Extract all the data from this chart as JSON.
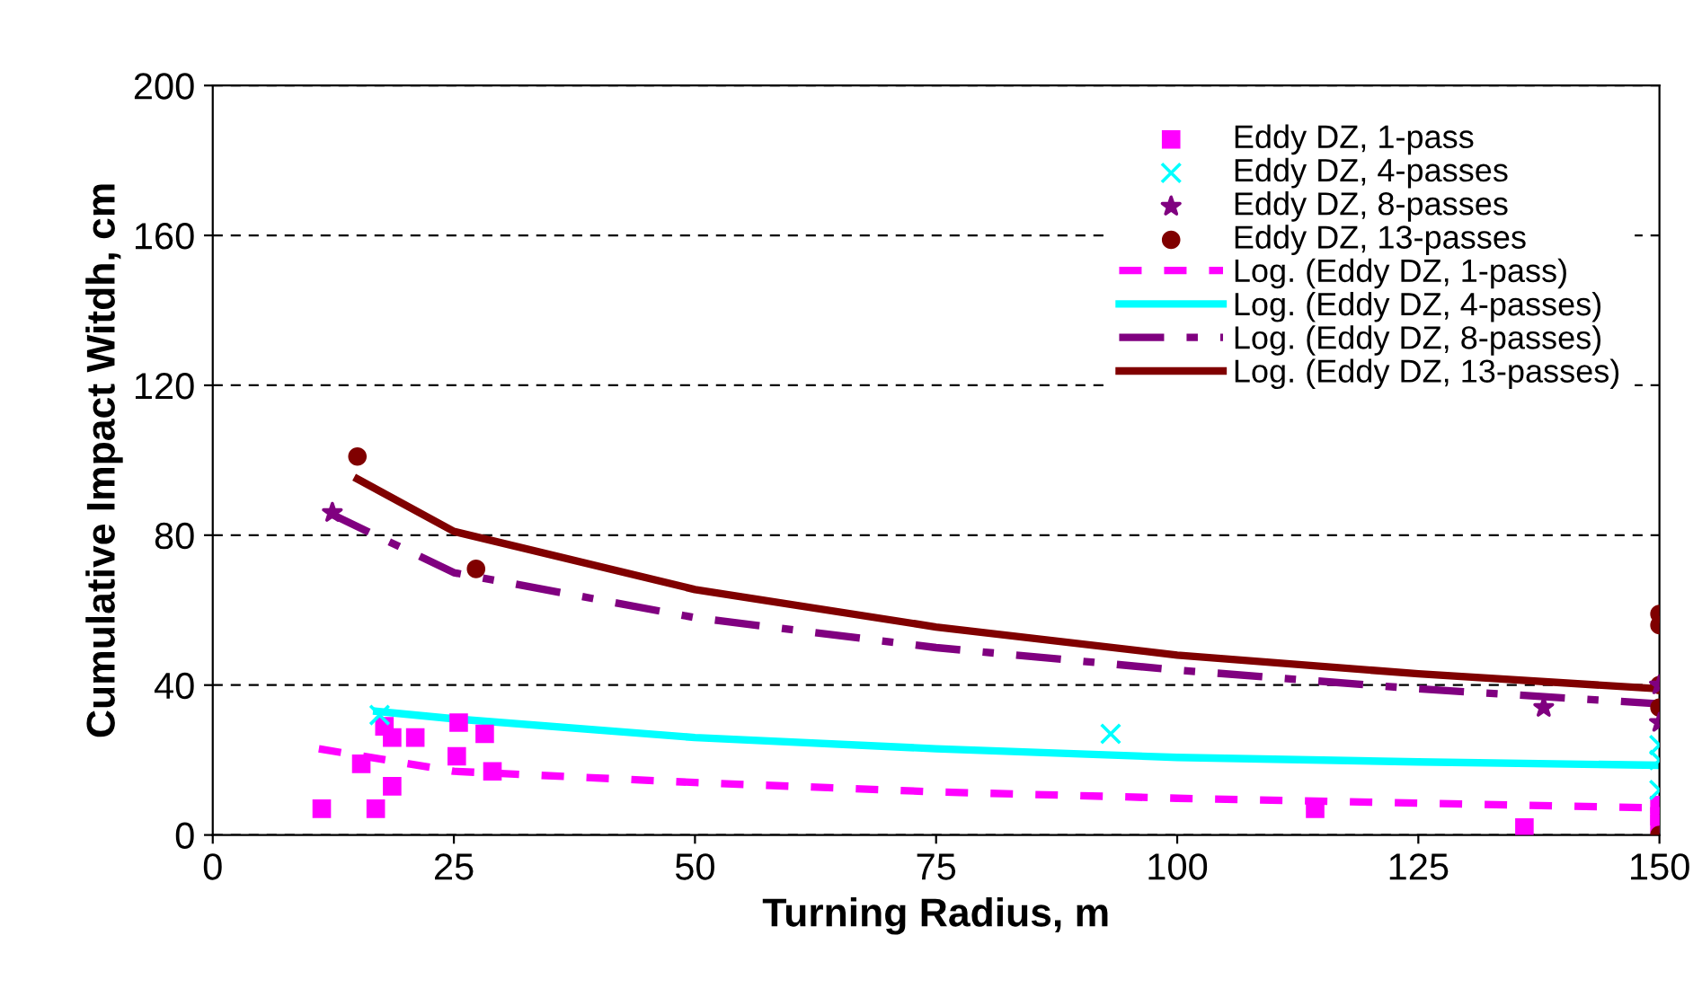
{
  "chart_data": {
    "type": "scatter",
    "xlabel": "Turning Radius, m",
    "ylabel": "Cumulative Impact Witdh, cm",
    "xlim": [
      0,
      150
    ],
    "xticks": [
      0,
      25,
      50,
      75,
      100,
      125,
      150
    ],
    "ylim": [
      0,
      200
    ],
    "yticks": [
      0,
      40,
      80,
      120,
      160,
      200
    ],
    "grid": "y",
    "legend": "top right",
    "series": [
      {
        "name": "Eddy DZ, 1-pass",
        "marker": "square",
        "color": "#ff00ff",
        "x": [
          11.3,
          16.9,
          15.4,
          18.6,
          17.8,
          18.6,
          21,
          25.3,
          25.5,
          28.2,
          29,
          114.3,
          136,
          150,
          150,
          150
        ],
        "values": [
          7,
          7,
          19,
          13,
          29,
          26,
          26,
          21,
          30,
          27,
          17,
          7,
          2,
          8,
          5,
          3
        ]
      },
      {
        "name": "Eddy DZ, 4-passes",
        "marker": "cross",
        "color": "#00ffff",
        "x": [
          17.3,
          93.1,
          150,
          150,
          150
        ],
        "values": [
          32,
          27,
          24,
          20,
          12
        ]
      },
      {
        "name": "Eddy DZ, 8-passes",
        "marker": "star",
        "color": "#800080",
        "x": [
          12.4,
          138,
          150,
          150
        ],
        "values": [
          86,
          34,
          40,
          30
        ]
      },
      {
        "name": "Eddy DZ, 13-passes",
        "marker": "circle",
        "color": "#800000",
        "x": [
          15,
          27.3,
          150,
          150,
          150,
          150,
          150
        ],
        "values": [
          101,
          71,
          59,
          56,
          40,
          34,
          0
        ]
      },
      {
        "name": "Log. (Eddy DZ, 1-pass)",
        "type": "line",
        "line_style": "dashed",
        "marker": "none",
        "color": "#ff00ff",
        "x": [
          11,
          25,
          50,
          75,
          100,
          125,
          150
        ],
        "values": [
          23,
          17,
          14,
          11.5,
          9.8,
          8.5,
          7.2
        ]
      },
      {
        "name": "Log. (Eddy DZ, 4-passes)",
        "type": "line",
        "line_style": "solid",
        "marker": "none",
        "color": "#00ffff",
        "x": [
          17,
          25,
          50,
          75,
          100,
          125,
          150
        ],
        "values": [
          33,
          31,
          26,
          23,
          20.7,
          19.5,
          18.6
        ]
      },
      {
        "name": "Log. (Eddy DZ, 8-passes)",
        "type": "line",
        "line_style": "dashdot",
        "marker": "none",
        "color": "#800080",
        "x": [
          12,
          25,
          50,
          75,
          100,
          125,
          150
        ],
        "values": [
          86,
          70,
          58,
          50,
          44,
          39,
          35
        ]
      },
      {
        "name": "Log. (Eddy DZ, 13-passes)",
        "type": "line",
        "line_style": "solid",
        "marker": "none",
        "color": "#800000",
        "x": [
          15,
          25,
          50,
          75,
          100,
          125,
          150
        ],
        "values": [
          95,
          81,
          65.5,
          55.5,
          48,
          43,
          39
        ]
      }
    ]
  }
}
